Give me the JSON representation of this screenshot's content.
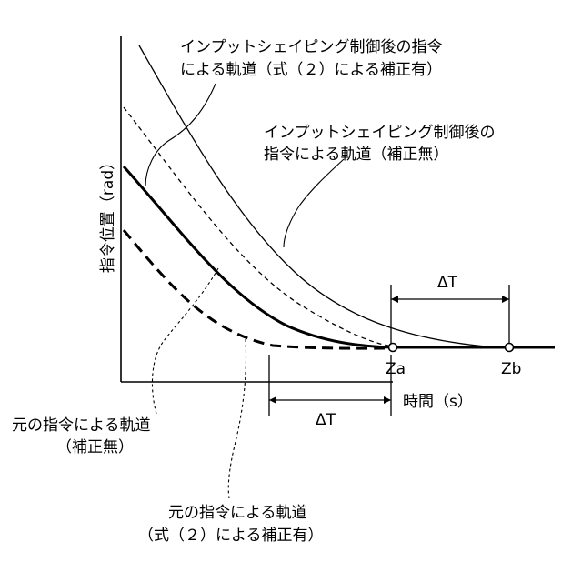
{
  "labels": {
    "shaped_corrected_line1": "インプットシェイピング制御後の指令",
    "shaped_corrected_line2": "による軌道（式（２）による補正有）",
    "shaped_uncorrected_line1": "インプットシェイピング制御後の",
    "shaped_uncorrected_line2": "指令による軌道（補正無）",
    "original_uncorrected_line1": "元の指令による軌道",
    "original_uncorrected_line2": "（補正無）",
    "original_corrected_line1": "元の指令による軌道",
    "original_corrected_line2": "（式（２）による補正有）"
  },
  "axes": {
    "y_label": "指令位置（rad）",
    "x_label": "時間（s）"
  },
  "markers": {
    "za": "Za",
    "zb": "Zb",
    "delta_t_upper": "ΔT",
    "delta_t_lower": "ΔT"
  }
}
